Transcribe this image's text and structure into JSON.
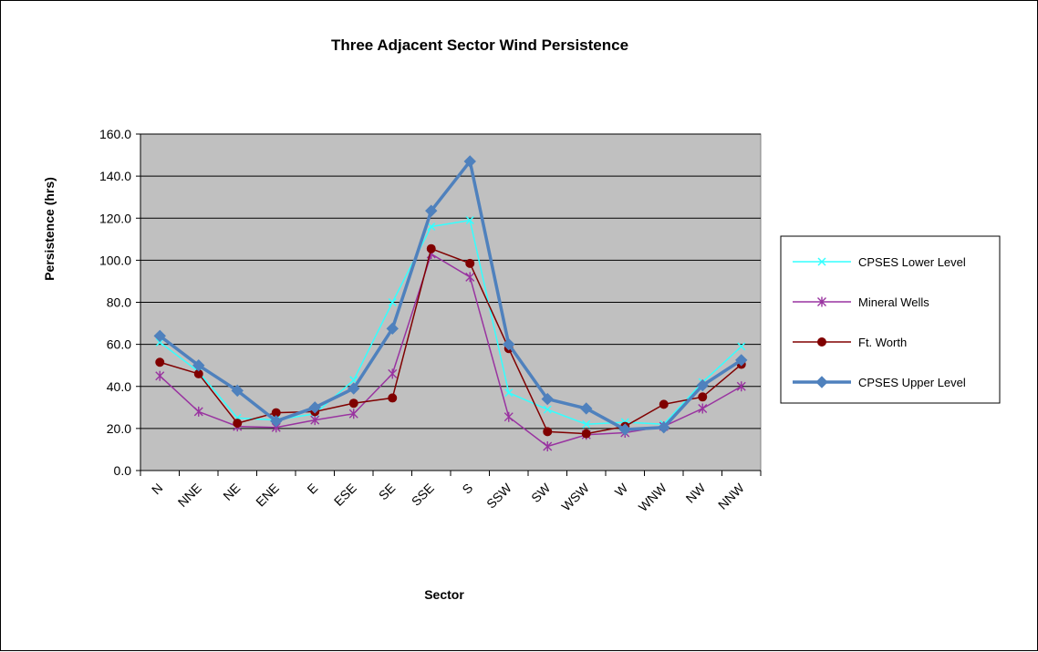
{
  "chart_data": {
    "type": "line",
    "title": "Three Adjacent Sector Wind Persistence",
    "xlabel": "Sector",
    "ylabel": "Persistence (hrs)",
    "ylim": [
      0,
      160
    ],
    "ytick_step": 20,
    "y_tick_labels": [
      "0.0",
      "20.0",
      "40.0",
      "60.0",
      "80.0",
      "100.0",
      "120.0",
      "140.0",
      "160.0"
    ],
    "grid": true,
    "plot_background": "#c0c0c0",
    "legend_placement": "right",
    "categories": [
      "N",
      "NNE",
      "NE",
      "ENE",
      "E",
      "ESE",
      "SE",
      "SSE",
      "S",
      "SSW",
      "SW",
      "WSW",
      "W",
      "WNW",
      "NW",
      "NNW"
    ],
    "series": [
      {
        "name": "CPSES Lower Level",
        "color": "#33ffff",
        "marker": "x",
        "line_width": 1.5,
        "values": [
          61,
          47,
          25,
          24,
          27,
          43,
          80,
          116,
          119,
          37,
          29,
          22,
          23,
          22,
          42,
          59
        ]
      },
      {
        "name": "Mineral Wells",
        "color": "#9933a0",
        "marker": "asterisk",
        "line_width": 1.5,
        "values": [
          45,
          28,
          21,
          20.5,
          24,
          27,
          46,
          103,
          92,
          25.5,
          11.5,
          17,
          18,
          21,
          29.5,
          40
        ]
      },
      {
        "name": "Ft. Worth",
        "color": "#800000",
        "marker": "circle",
        "line_width": 1.5,
        "values": [
          51.5,
          46,
          22.5,
          27.5,
          28,
          32,
          34.5,
          105.5,
          98.5,
          58,
          18.5,
          17.5,
          21,
          31.5,
          35,
          50.5
        ]
      },
      {
        "name": "CPSES Upper Level",
        "color": "#4f81bd",
        "marker": "diamond",
        "line_width": 3.5,
        "values": [
          64,
          50,
          38,
          23.5,
          30,
          39,
          67.5,
          123.5,
          147,
          60,
          34,
          29.5,
          19.5,
          20.5,
          40.5,
          52.5
        ]
      }
    ]
  }
}
